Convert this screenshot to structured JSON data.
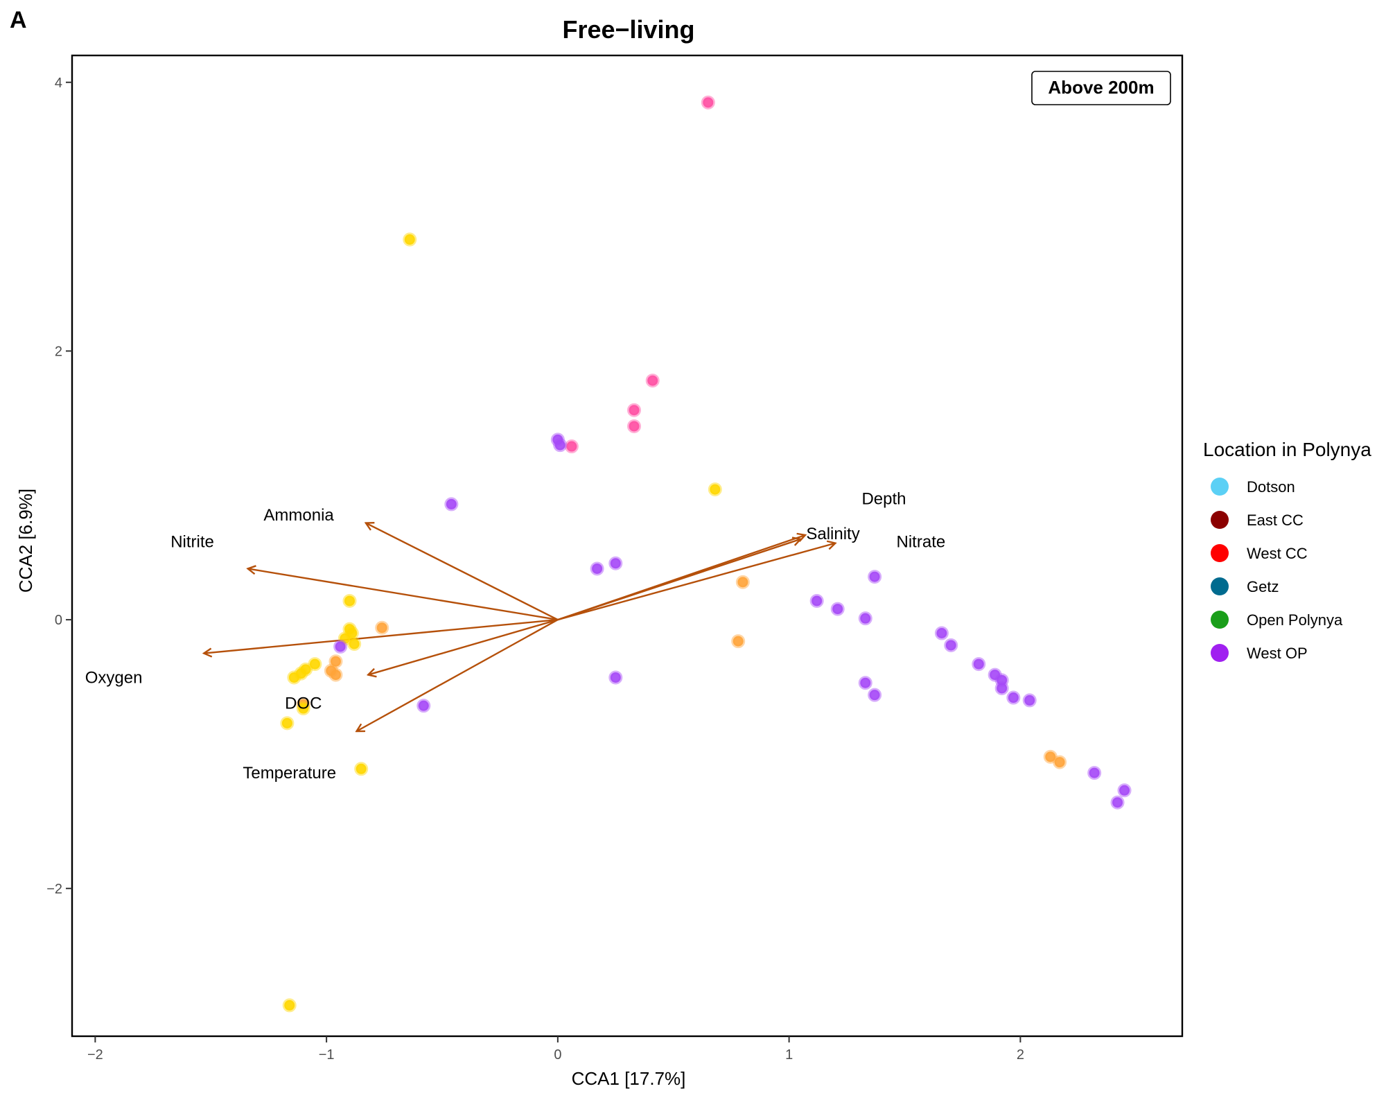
{
  "panel_label": "A",
  "badge": "Above 200m",
  "colors": {
    "arrow": "#b5500a",
    "dotson": "#5bd0f5",
    "east_cc": "#8b0000",
    "west_cc": "#ff0000",
    "getz": "#006b8f",
    "open_polynya": "#1a9e1a",
    "west_op": "#a020f0",
    "pt_yellow": "#ffd700",
    "pt_orange": "#ffa43a",
    "pt_pink": "#ff4fa3",
    "pt_purple": "#a64af7"
  },
  "legend": {
    "title": "Location in Polynya",
    "items": [
      {
        "label": "Dotson",
        "color": "#5bd0f5"
      },
      {
        "label": "East CC",
        "color": "#8b0000"
      },
      {
        "label": "West CC",
        "color": "#ff0000"
      },
      {
        "label": "Getz",
        "color": "#006b8f"
      },
      {
        "label": "Open Polynya",
        "color": "#1a9e1a"
      },
      {
        "label": "West OP",
        "color": "#a020f0"
      }
    ]
  },
  "chart_data": {
    "type": "scatter",
    "title": "Free−living",
    "xlabel": "CCA1   [17.7%]",
    "ylabel": "CCA2   [6.9%]",
    "xlim": [
      -2.1,
      2.7
    ],
    "ylim": [
      -3.1,
      4.2
    ],
    "xticks": [
      {
        "value": -2,
        "label": "−2"
      },
      {
        "value": -1,
        "label": "−1"
      },
      {
        "value": 0,
        "label": "0"
      },
      {
        "value": 1,
        "label": "1"
      },
      {
        "value": 2,
        "label": "2"
      }
    ],
    "yticks": [
      {
        "value": -2,
        "label": "−2"
      },
      {
        "value": 0,
        "label": "0"
      },
      {
        "value": 2,
        "label": "2"
      },
      {
        "value": 4,
        "label": "4"
      }
    ],
    "grid": false,
    "legend_position": "right",
    "vectors": [
      {
        "name": "Ammonia",
        "x": -0.83,
        "y": 0.72,
        "label_x": -1.12,
        "label_y": 0.78
      },
      {
        "name": "Nitrite",
        "x": -1.34,
        "y": 0.38,
        "label_x": -1.58,
        "label_y": 0.58
      },
      {
        "name": "Oxygen",
        "x": -1.53,
        "y": -0.25,
        "label_x": -1.92,
        "label_y": -0.43
      },
      {
        "name": "DOC",
        "x": -0.82,
        "y": -0.41,
        "label_x": -1.1,
        "label_y": -0.62
      },
      {
        "name": "Temperature",
        "x": -0.87,
        "y": -0.83,
        "label_x": -1.16,
        "label_y": -1.14
      },
      {
        "name": "Salinity",
        "x": 1.07,
        "y": 0.63,
        "label_x": 1.19,
        "label_y": 0.64
      },
      {
        "name": "Depth",
        "x": 1.05,
        "y": 0.6,
        "label_x": 1.41,
        "label_y": 0.9
      },
      {
        "name": "Nitrate",
        "x": 1.2,
        "y": 0.57,
        "label_x": 1.57,
        "label_y": 0.58
      }
    ],
    "points": [
      {
        "x": 0.65,
        "y": 3.85,
        "c": "pink"
      },
      {
        "x": -0.64,
        "y": 2.83,
        "c": "yellow"
      },
      {
        "x": 0.41,
        "y": 1.78,
        "c": "pink"
      },
      {
        "x": 0.33,
        "y": 1.56,
        "c": "pink"
      },
      {
        "x": 0.33,
        "y": 1.44,
        "c": "pink"
      },
      {
        "x": 0.06,
        "y": 1.29,
        "c": "pink"
      },
      {
        "x": 0.0,
        "y": 1.34,
        "c": "purple"
      },
      {
        "x": 0.01,
        "y": 1.3,
        "c": "purple"
      },
      {
        "x": 0.68,
        "y": 0.97,
        "c": "yellow"
      },
      {
        "x": -0.46,
        "y": 0.86,
        "c": "purple"
      },
      {
        "x": 0.25,
        "y": 0.42,
        "c": "purple"
      },
      {
        "x": 0.17,
        "y": 0.38,
        "c": "purple"
      },
      {
        "x": 0.8,
        "y": 0.28,
        "c": "orange"
      },
      {
        "x": 1.37,
        "y": 0.32,
        "c": "purple"
      },
      {
        "x": 1.12,
        "y": 0.14,
        "c": "purple"
      },
      {
        "x": 1.21,
        "y": 0.08,
        "c": "purple"
      },
      {
        "x": 1.33,
        "y": 0.01,
        "c": "purple"
      },
      {
        "x": 0.78,
        "y": -0.16,
        "c": "orange"
      },
      {
        "x": 1.66,
        "y": -0.1,
        "c": "purple"
      },
      {
        "x": 1.7,
        "y": -0.19,
        "c": "purple"
      },
      {
        "x": 1.82,
        "y": -0.33,
        "c": "purple"
      },
      {
        "x": 1.89,
        "y": -0.41,
        "c": "purple"
      },
      {
        "x": 1.92,
        "y": -0.45,
        "c": "purple"
      },
      {
        "x": 1.92,
        "y": -0.51,
        "c": "purple"
      },
      {
        "x": 1.97,
        "y": -0.58,
        "c": "purple"
      },
      {
        "x": 2.04,
        "y": -0.6,
        "c": "purple"
      },
      {
        "x": 1.33,
        "y": -0.47,
        "c": "purple"
      },
      {
        "x": 1.37,
        "y": -0.56,
        "c": "purple"
      },
      {
        "x": 0.25,
        "y": -0.43,
        "c": "purple"
      },
      {
        "x": -0.58,
        "y": -0.64,
        "c": "purple"
      },
      {
        "x": 2.13,
        "y": -1.02,
        "c": "orange"
      },
      {
        "x": 2.17,
        "y": -1.06,
        "c": "orange"
      },
      {
        "x": 2.32,
        "y": -1.14,
        "c": "purple"
      },
      {
        "x": 2.45,
        "y": -1.27,
        "c": "purple"
      },
      {
        "x": 2.42,
        "y": -1.36,
        "c": "purple"
      },
      {
        "x": -0.9,
        "y": 0.14,
        "c": "yellow"
      },
      {
        "x": -0.76,
        "y": -0.06,
        "c": "orange"
      },
      {
        "x": -0.9,
        "y": -0.07,
        "c": "yellow"
      },
      {
        "x": -0.89,
        "y": -0.1,
        "c": "yellow"
      },
      {
        "x": -0.92,
        "y": -0.14,
        "c": "yellow"
      },
      {
        "x": -0.88,
        "y": -0.18,
        "c": "yellow"
      },
      {
        "x": -0.94,
        "y": -0.2,
        "c": "purple"
      },
      {
        "x": -0.96,
        "y": -0.31,
        "c": "orange"
      },
      {
        "x": -1.05,
        "y": -0.33,
        "c": "yellow"
      },
      {
        "x": -1.09,
        "y": -0.37,
        "c": "yellow"
      },
      {
        "x": -0.98,
        "y": -0.38,
        "c": "orange"
      },
      {
        "x": -0.96,
        "y": -0.41,
        "c": "orange"
      },
      {
        "x": -1.11,
        "y": -0.4,
        "c": "yellow"
      },
      {
        "x": -1.14,
        "y": -0.43,
        "c": "yellow"
      },
      {
        "x": -1.1,
        "y": -0.63,
        "c": "orange"
      },
      {
        "x": -1.1,
        "y": -0.66,
        "c": "yellow"
      },
      {
        "x": -1.17,
        "y": -0.77,
        "c": "yellow"
      },
      {
        "x": -0.85,
        "y": -1.11,
        "c": "yellow"
      },
      {
        "x": -1.16,
        "y": -2.87,
        "c": "yellow"
      }
    ]
  }
}
